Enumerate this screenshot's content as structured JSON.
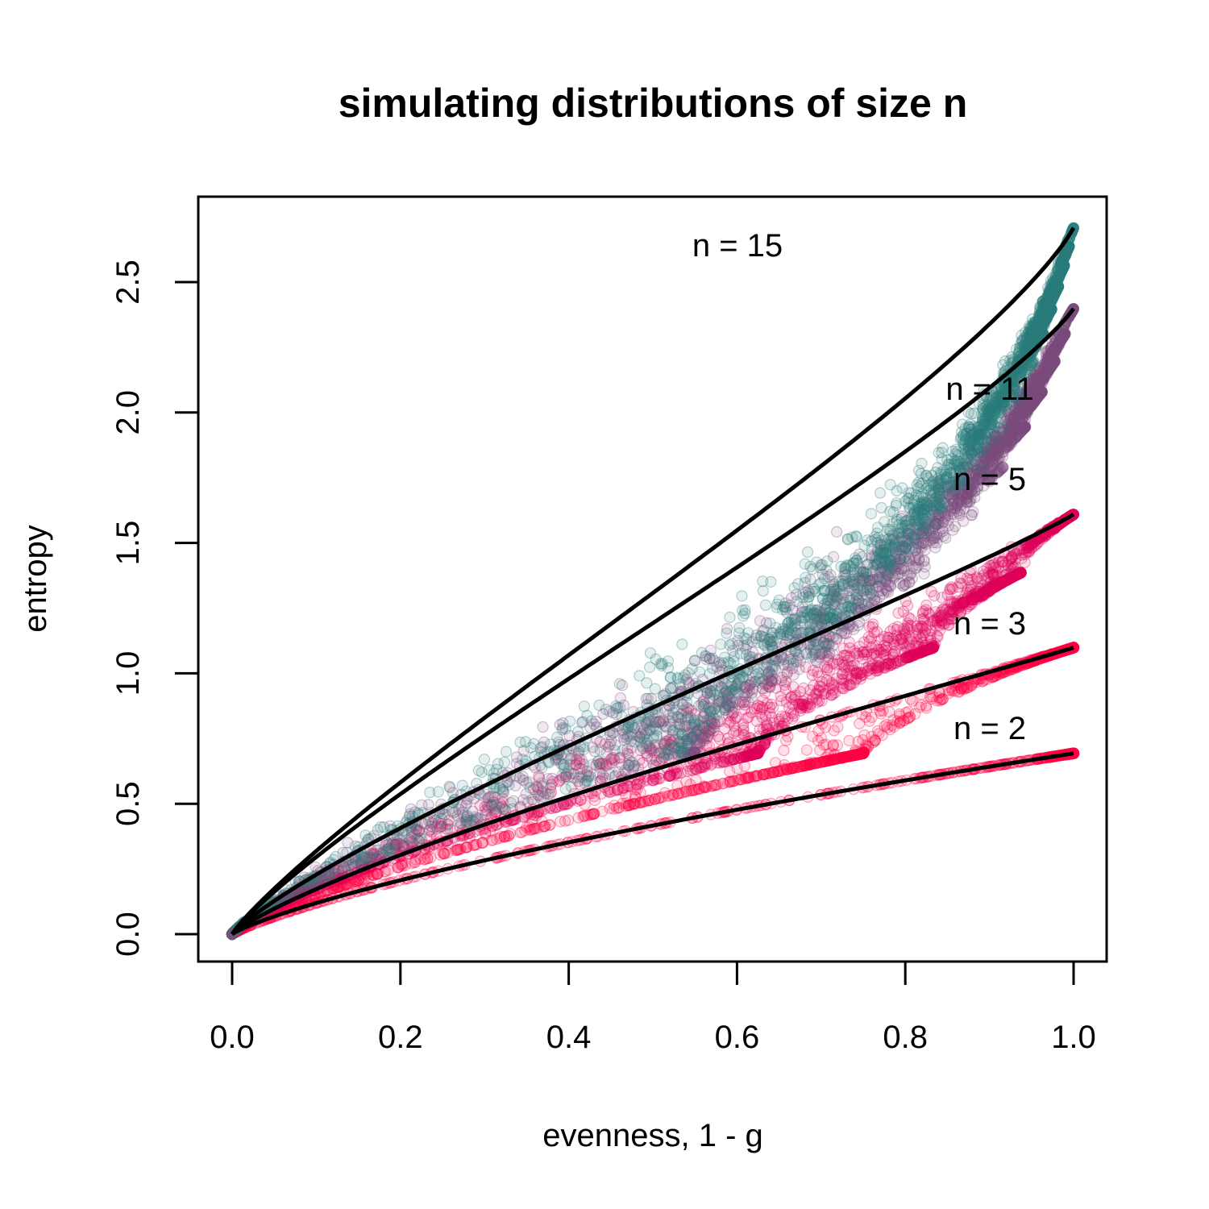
{
  "chart_data": {
    "type": "scatter",
    "title": "simulating distributions of size n",
    "xlabel": "evenness, 1 - g",
    "ylabel": "entropy",
    "xlim": [
      0.0,
      1.0
    ],
    "ylim": [
      0.0,
      2.75
    ],
    "x_ticks": [
      "0.0",
      "0.2",
      "0.4",
      "0.6",
      "0.8",
      "1.0"
    ],
    "y_ticks": [
      "0.0",
      "0.5",
      "1.0",
      "1.5",
      "2.0",
      "2.5"
    ],
    "grid": false,
    "legend": "none",
    "series": [
      {
        "name": "n = 2",
        "n": 2,
        "color": "#FF0044",
        "max_entropy": 0.693
      },
      {
        "name": "n = 3",
        "n": 3,
        "color": "#FF0044",
        "max_entropy": 1.099
      },
      {
        "name": "n = 5",
        "n": 5,
        "color": "#E0005A",
        "max_entropy": 1.609
      },
      {
        "name": "n = 11",
        "n": 11,
        "color": "#7B4D7D",
        "max_entropy": 2.398
      },
      {
        "name": "n = 15",
        "n": 15,
        "color": "#2A7F7C",
        "max_entropy": 2.708
      }
    ],
    "curve_color": "#000000"
  }
}
